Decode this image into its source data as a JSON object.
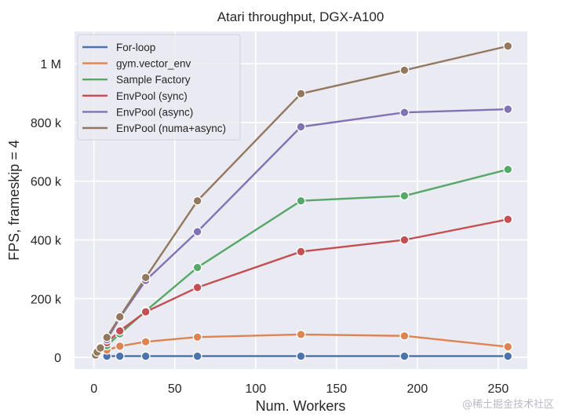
{
  "chart_data": {
    "type": "line",
    "title": "Atari throughput, DGX-A100",
    "xlabel": "Num. Workers",
    "ylabel": "FPS, frameskip = 4",
    "xlim": [
      -12,
      268
    ],
    "ylim": [
      -40000,
      1110000
    ],
    "xticks": [
      0,
      50,
      100,
      150,
      200,
      250
    ],
    "xtick_labels": [
      "0",
      "50",
      "100",
      "150",
      "200",
      "250"
    ],
    "yticks": [
      0,
      200000,
      400000,
      600000,
      800000,
      1000000
    ],
    "ytick_labels": [
      "0",
      "200 k",
      "400 k",
      "600 k",
      "800 k",
      "1 M"
    ],
    "grid": true,
    "legend_position": "top-left",
    "series": [
      {
        "name": "For-loop",
        "color": "#4c72b0",
        "x": [
          8,
          16,
          32,
          64,
          128,
          192,
          256
        ],
        "y": [
          4000,
          4000,
          4000,
          4000,
          4000,
          4000,
          4000
        ]
      },
      {
        "name": "gym.vector_env",
        "color": "#dd8452",
        "x": [
          8,
          16,
          32,
          64,
          128,
          192,
          256
        ],
        "y": [
          25000,
          38000,
          53000,
          69000,
          78000,
          73000,
          36000
        ]
      },
      {
        "name": "Sample Factory",
        "color": "#55a868",
        "x": [
          8,
          16,
          32,
          64,
          128,
          192,
          256
        ],
        "y": [
          40000,
          80000,
          158000,
          306000,
          533000,
          550000,
          640000
        ]
      },
      {
        "name": "EnvPool (sync)",
        "color": "#c44e52",
        "x": [
          8,
          16,
          32,
          64,
          128,
          192,
          256
        ],
        "y": [
          50000,
          90000,
          155000,
          238000,
          360000,
          400000,
          470000
        ]
      },
      {
        "name": "EnvPool (async)",
        "color": "#8172b3",
        "x": [
          1,
          2,
          4,
          8,
          16,
          32,
          64,
          128,
          192,
          256
        ],
        "y": [
          10000,
          22000,
          35000,
          60000,
          135000,
          262000,
          428000,
          785000,
          834000,
          845000
        ]
      },
      {
        "name": "EnvPool (numa+async)",
        "color": "#937860",
        "x": [
          1,
          2,
          4,
          8,
          16,
          32,
          64,
          128,
          192,
          256
        ],
        "y": [
          8000,
          18000,
          32000,
          68000,
          138000,
          272000,
          533000,
          898000,
          978000,
          1060000
        ]
      }
    ]
  },
  "watermark": "@稀土掘金技术社区"
}
